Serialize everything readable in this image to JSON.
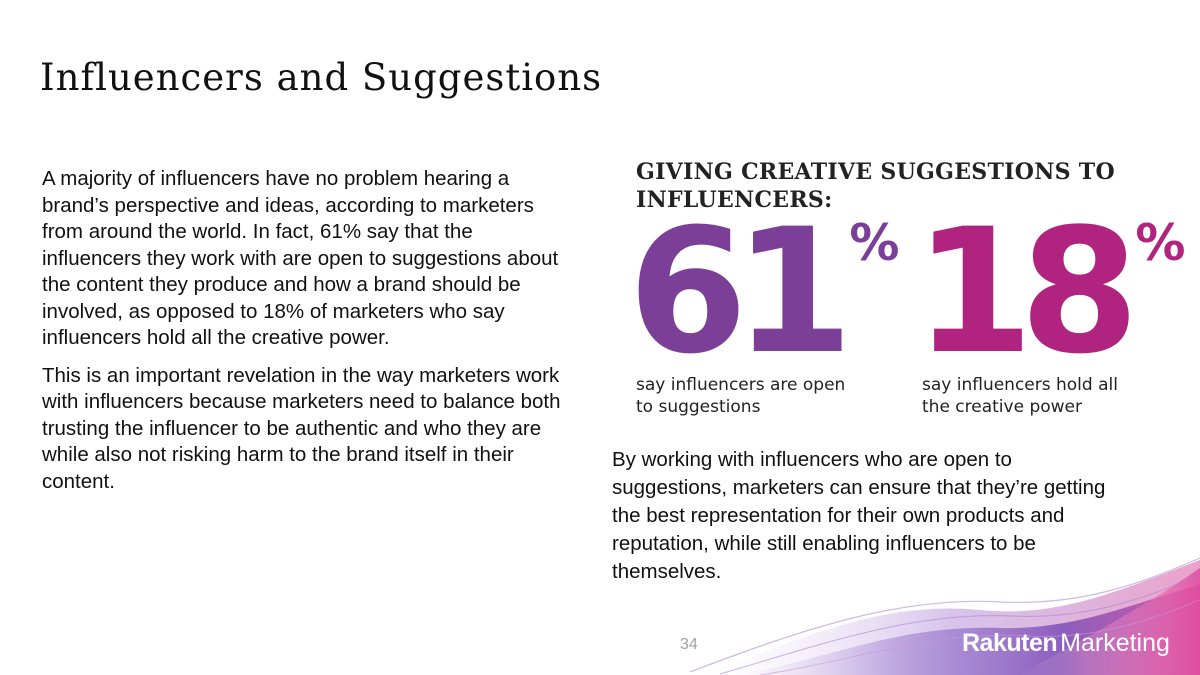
{
  "slide": {
    "title": "Influencers and Suggestions",
    "page_number": "34"
  },
  "left_column": {
    "paragraphs": [
      "A majority of influencers have no problem hearing a brand’s perspective and ideas, according to marketers from around the world. In fact, 61% say that the influencers they work with are open to suggestions about the content they produce and how a brand should be involved, as opposed to 18% of marketers who say influencers hold all the creative power.",
      "This is an important revelation in the way marketers work with influencers because marketers need to balance both trusting the influencer to be authentic and who they are while also not risking harm to the brand itself in their content."
    ]
  },
  "stats_panel": {
    "heading": "GIVING CREATIVE SUGGESTIONS TO INFLUENCERS:",
    "stats": [
      {
        "value": "61",
        "unit": "%",
        "caption": "say influencers are open to suggestions",
        "color": "#7b3f98"
      },
      {
        "value": "18",
        "unit": "%",
        "caption": "say influencers hold all the creative power",
        "color": "#b0247f"
      }
    ],
    "summary": "By working with influencers who are open to suggestions, marketers can ensure that they’re getting the best representation for their own products and reputation, while still enabling influencers to be themselves."
  },
  "footer": {
    "logo_brand": "Rakuten",
    "logo_sub": "Marketing"
  },
  "colors": {
    "purple_accent": "#7b3f98",
    "magenta_accent": "#b0247f",
    "wave_purple": "#8a5bb8",
    "wave_pink": "#d64a9a"
  }
}
